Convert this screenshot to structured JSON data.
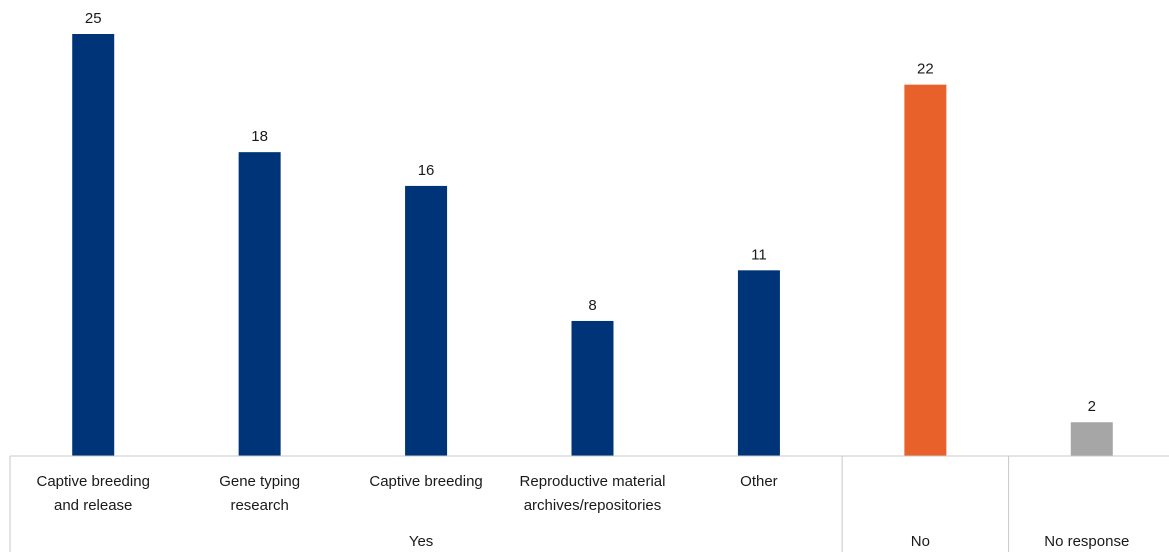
{
  "chart_data": {
    "type": "bar",
    "categories": [
      {
        "lines": [
          "Captive breeding",
          "and release"
        ],
        "group": "Yes"
      },
      {
        "lines": [
          "Gene typing",
          "research"
        ],
        "group": "Yes"
      },
      {
        "lines": [
          "Captive breeding"
        ],
        "group": "Yes"
      },
      {
        "lines": [
          "Reproductive material",
          "archives/repositories"
        ],
        "group": "Yes"
      },
      {
        "lines": [
          "Other"
        ],
        "group": "Yes"
      },
      {
        "lines": [],
        "group": "No"
      },
      {
        "lines": [],
        "group": "No response"
      }
    ],
    "values": [
      25,
      18,
      16,
      8,
      11,
      22,
      2
    ],
    "value_labels": [
      "25",
      "18",
      "16",
      "8",
      "11",
      "22",
      "2"
    ],
    "bar_colors": [
      "#003478",
      "#003478",
      "#003478",
      "#003478",
      "#003478",
      "#e8612a",
      "#a6a6a6"
    ],
    "groups": [
      {
        "label": "Yes",
        "span": [
          0,
          4
        ]
      },
      {
        "label": "No",
        "span": [
          5,
          5
        ]
      },
      {
        "label": "No response",
        "span": [
          6,
          6
        ]
      }
    ],
    "ylim": [
      0,
      25
    ],
    "title": "",
    "xlabel": "",
    "ylabel": "",
    "grid": false,
    "legend": "none"
  }
}
